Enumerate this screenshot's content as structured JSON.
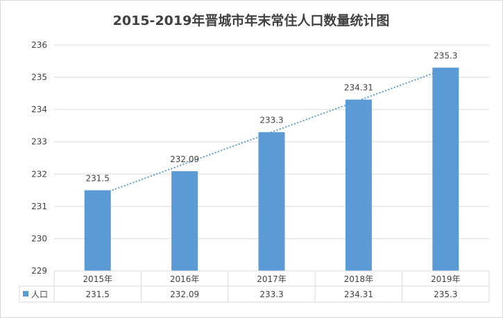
{
  "chart_data": {
    "type": "bar",
    "title": "2015-2019年晋城市年末常住人口数量统计图",
    "categories": [
      "2015年",
      "2016年",
      "2017年",
      "2018年",
      "2019年"
    ],
    "series": [
      {
        "name": "人口",
        "values": [
          231.5,
          232.09,
          233.3,
          234.31,
          235.3
        ]
      }
    ],
    "data_labels": [
      "231.5",
      "232.09",
      "233.3",
      "234.31",
      "235.3"
    ],
    "table_values": [
      "231.5",
      "232.09",
      "233.3",
      "234.31",
      "235.3"
    ],
    "ylim": [
      229,
      236
    ],
    "yticks": [
      "229",
      "230",
      "231",
      "232",
      "233",
      "234",
      "235",
      "236"
    ],
    "grid": true,
    "trendline": "linear",
    "legend_placement": "data-table",
    "colors": {
      "bar": "#5b9bd5",
      "trendline": "#5b9bd5",
      "grid": "#d9d9d9",
      "text": "#404040"
    }
  }
}
